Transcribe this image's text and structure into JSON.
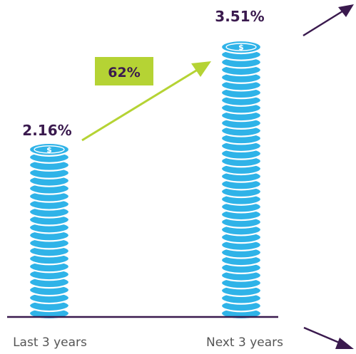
{
  "chart_data": {
    "type": "bar",
    "categories": [
      "Last 3 years",
      "Next 3 years"
    ],
    "values": [
      2.16,
      3.51
    ],
    "value_labels": [
      "2.16%",
      "3.51%"
    ],
    "ylim": [
      0,
      3.51
    ],
    "title": "",
    "xlabel": "",
    "ylabel": "",
    "growth_badge": "62%",
    "coin_symbol": "$",
    "colors": {
      "coin": "#2fb3e8",
      "coin_dark": "#1a8fc4",
      "baseline": "#3a1a4e",
      "value_text": "#3a1a4e",
      "badge_bg": "#b5d334",
      "growth_arrow": "#b5d334",
      "corner_arrows": "#3a1a4e"
    }
  }
}
